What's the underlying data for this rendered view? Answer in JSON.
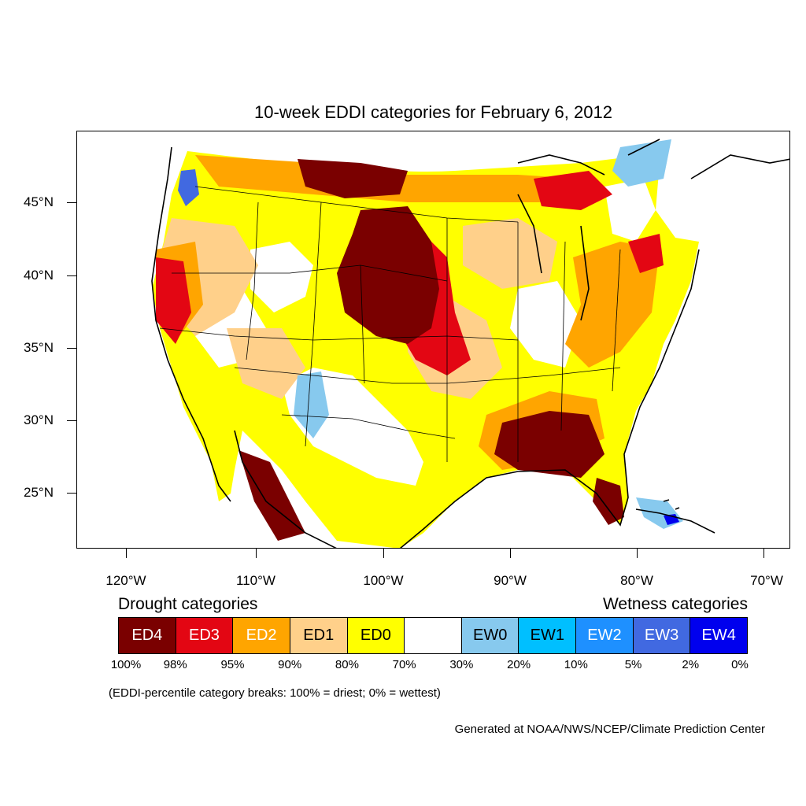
{
  "title": "10-week EDDI categories for February 6, 2012",
  "lat_labels": [
    "45°N",
    "40°N",
    "35°N",
    "30°N",
    "25°N"
  ],
  "lon_labels": [
    "120°W",
    "110°W",
    "100°W",
    "90°W",
    "80°W",
    "70°W"
  ],
  "legend": {
    "drought_heading": "Drought categories",
    "wetness_heading": "Wetness categories",
    "categories": [
      {
        "label": "ED4",
        "color": "#7a0000",
        "text_color": "#ffffff"
      },
      {
        "label": "ED3",
        "color": "#e30613",
        "text_color": "#ffffff"
      },
      {
        "label": "ED2",
        "color": "#ffa500",
        "text_color": "#ffffff"
      },
      {
        "label": "ED1",
        "color": "#ffd08a",
        "text_color": "#000000"
      },
      {
        "label": "ED0",
        "color": "#ffff00",
        "text_color": "#000000"
      },
      {
        "label": "",
        "color": "#ffffff",
        "text_color": "#000000"
      },
      {
        "label": "EW0",
        "color": "#87c9ee",
        "text_color": "#000000"
      },
      {
        "label": "EW1",
        "color": "#00bfff",
        "text_color": "#000000"
      },
      {
        "label": "EW2",
        "color": "#1e90ff",
        "text_color": "#ffffff"
      },
      {
        "label": "EW3",
        "color": "#4169e1",
        "text_color": "#ffffff"
      },
      {
        "label": "EW4",
        "color": "#0000ee",
        "text_color": "#ffffff"
      }
    ],
    "percent_breaks": [
      "100%",
      "98%",
      "95%",
      "90%",
      "80%",
      "70%",
      "30%",
      "20%",
      "10%",
      "5%",
      "2%",
      "0%"
    ]
  },
  "note": "(EDDI-percentile category breaks: 100% = driest; 0% = wettest)",
  "credit": "Generated at NOAA/NWS/NCEP/Climate Prediction Center"
}
